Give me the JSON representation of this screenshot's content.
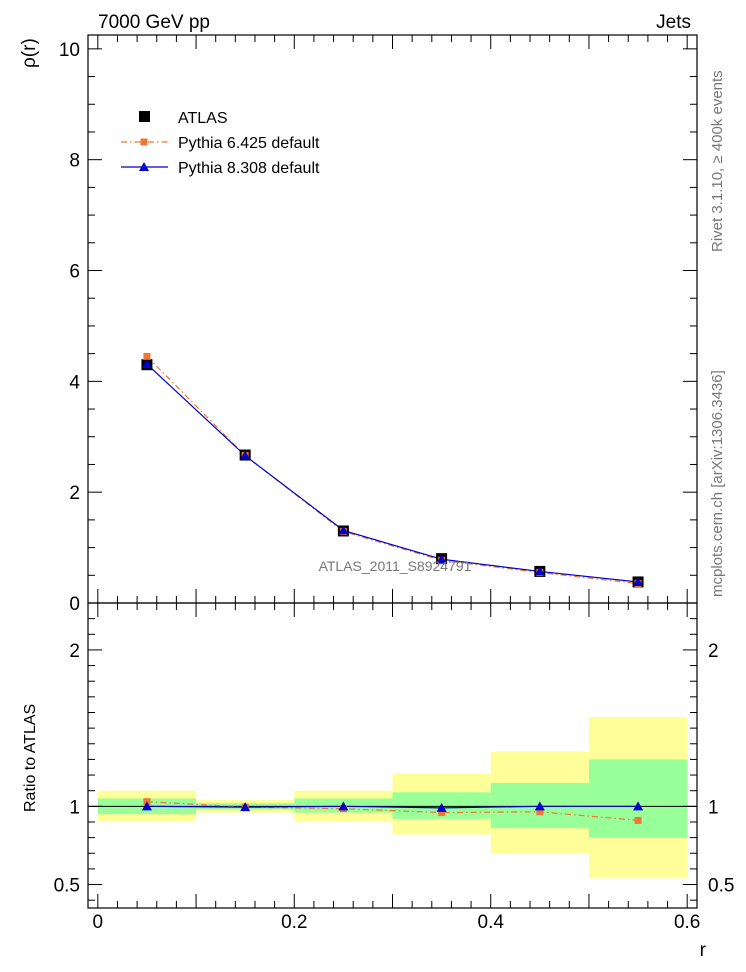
{
  "header": {
    "left": "7000 GeV pp",
    "right": "Jets"
  },
  "side_labels": {
    "top": "Rivet 3.1.10, ≥ 400k events",
    "bottom": "mcplots.cern.ch [arXiv:1306.3436]"
  },
  "watermark": "ATLAS_2011_S8924791",
  "colors": {
    "atlas": "#000000",
    "pythia6": "#ee7733",
    "pythia8": "#0000cc",
    "band_inner": "#99ff99",
    "band_outer": "#ffff99"
  },
  "chart_data": [
    {
      "type": "line",
      "title": "",
      "xlabel": "",
      "ylabel": "ρ(r)",
      "xlim": [
        -0.01,
        0.61
      ],
      "ylim": [
        0,
        10.25
      ],
      "yticks": [
        0,
        2,
        4,
        6,
        8,
        10
      ],
      "ytick_labels": [
        "0",
        "2",
        "4",
        "6",
        "8",
        "10"
      ],
      "x": [
        0.05,
        0.15,
        0.25,
        0.35,
        0.45,
        0.55
      ],
      "series": [
        {
          "name": "ATLAS",
          "style": "markers",
          "values": [
            4.3,
            2.67,
            1.3,
            0.8,
            0.57,
            0.38
          ]
        },
        {
          "name": "Pythia 6.425 default",
          "style": "dash-dot",
          "values": [
            4.45,
            2.66,
            1.29,
            0.77,
            0.55,
            0.35
          ]
        },
        {
          "name": "Pythia 8.308 default",
          "style": "solid",
          "values": [
            4.31,
            2.66,
            1.31,
            0.79,
            0.57,
            0.38
          ]
        }
      ],
      "legend_position": "top-left"
    },
    {
      "type": "line",
      "xlabel": "r",
      "ylabel": "Ratio to ATLAS",
      "xlim": [
        -0.01,
        0.61
      ],
      "ylim": [
        0.35,
        2.3
      ],
      "xticks": [
        0,
        0.2,
        0.4,
        0.6
      ],
      "xtick_labels": [
        "0",
        "0.2",
        "0.4",
        "0.6"
      ],
      "yticks": [
        0.5,
        1,
        2
      ],
      "ytick_labels": [
        "0.5",
        "1",
        "2"
      ],
      "x": [
        0.05,
        0.15,
        0.25,
        0.35,
        0.45,
        0.55
      ],
      "bins": [
        [
          0,
          0.1
        ],
        [
          0.1,
          0.2
        ],
        [
          0.2,
          0.3
        ],
        [
          0.3,
          0.4
        ],
        [
          0.4,
          0.5
        ],
        [
          0.5,
          0.6
        ]
      ],
      "band_inner": [
        [
          0.95,
          1.05
        ],
        [
          0.98,
          1.02
        ],
        [
          0.96,
          1.05
        ],
        [
          0.92,
          1.09
        ],
        [
          0.86,
          1.15
        ],
        [
          0.8,
          1.3
        ]
      ],
      "band_outer": [
        [
          0.9,
          1.1
        ],
        [
          0.96,
          1.04
        ],
        [
          0.9,
          1.1
        ],
        [
          0.82,
          1.21
        ],
        [
          0.7,
          1.35
        ],
        [
          0.54,
          1.57
        ]
      ],
      "series": [
        {
          "name": "Pythia 6.425 default",
          "values": [
            1.03,
            0.995,
            0.985,
            0.96,
            0.965,
            0.91
          ]
        },
        {
          "name": "Pythia 8.308 default",
          "values": [
            1.0,
            0.995,
            1.0,
            0.99,
            1.0,
            1.0
          ]
        }
      ]
    }
  ]
}
